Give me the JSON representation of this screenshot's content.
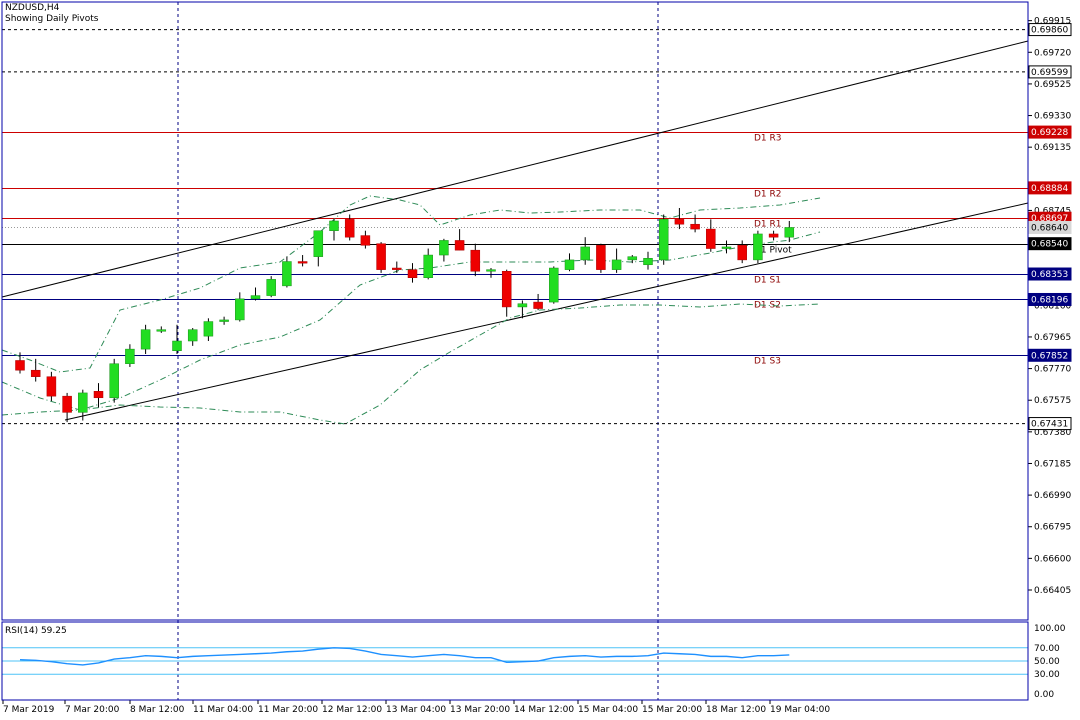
{
  "header": {
    "symbol": "NZDUSD,H4",
    "subtitle": "Showing Daily Pivots"
  },
  "rsi": {
    "label": "RSI(14) 59.25",
    "value": 59.25,
    "levels": [
      "100.00",
      "70.00",
      "50.00",
      "30.00",
      "0.00"
    ]
  },
  "colors": {
    "bull": "#22dd22",
    "bear": "#ee0000",
    "pivot_red": "#cc0000",
    "pivot_blue": "#000080",
    "rsi_line": "#1e90ff",
    "rsi_levels": "#4fc3f7",
    "frame": "#0000aa"
  },
  "chart_data": {
    "type": "candlestick",
    "price_axis_ticks": [
      "0.69915",
      "0.69720",
      "0.69525",
      "0.69330",
      "0.69135",
      "0.68745",
      "0.68550",
      "0.68160",
      "0.67965",
      "0.67770",
      "0.67575",
      "0.67380",
      "0.67185",
      "0.66990",
      "0.66795",
      "0.66600",
      "0.66405"
    ],
    "price_range": [
      0.6622,
      0.7003
    ],
    "time_labels": [
      "7 Mar 2019",
      "7 Mar 20:00",
      "8 Mar 12:00",
      "11 Mar 04:00",
      "11 Mar 20:00",
      "12 Mar 12:00",
      "13 Mar 04:00",
      "13 Mar 20:00",
      "14 Mar 12:00",
      "15 Mar 04:00",
      "15 Mar 20:00",
      "18 Mar 12:00",
      "19 Mar 04:00"
    ],
    "pivots": [
      {
        "name": "D1 R3",
        "value": 0.69228,
        "tag": "0.69228"
      },
      {
        "name": "D1 R2",
        "value": 0.68884,
        "tag": "0.68884"
      },
      {
        "name": "D1 R1",
        "value": 0.68697,
        "tag": "0.68697"
      },
      {
        "name": "D1 Pivot",
        "value": 0.6854,
        "tag": "0.68540"
      },
      {
        "name": "D1 S1",
        "value": 0.68353,
        "tag": "0.68353"
      },
      {
        "name": "D1 S2",
        "value": 0.68196,
        "tag": "0.68196"
      },
      {
        "name": "D1 S3",
        "value": 0.67852,
        "tag": "0.67852"
      }
    ],
    "horizontal_levels": [
      {
        "value": 0.6986,
        "tag": "0.69860"
      },
      {
        "value": 0.69599,
        "tag": "0.69599"
      },
      {
        "value": 0.67431,
        "tag": "0.67431"
      }
    ],
    "current_price": {
      "value": 0.6864,
      "tag": "0.68640"
    },
    "candles": [
      {
        "o": 0.6782,
        "h": 0.6787,
        "l": 0.6774,
        "c": 0.6776
      },
      {
        "o": 0.6776,
        "h": 0.6783,
        "l": 0.6769,
        "c": 0.6772
      },
      {
        "o": 0.6772,
        "h": 0.6775,
        "l": 0.6757,
        "c": 0.676
      },
      {
        "o": 0.676,
        "h": 0.6762,
        "l": 0.6744,
        "c": 0.675
      },
      {
        "o": 0.675,
        "h": 0.6764,
        "l": 0.6745,
        "c": 0.6762
      },
      {
        "o": 0.6763,
        "h": 0.6768,
        "l": 0.6753,
        "c": 0.6759
      },
      {
        "o": 0.6759,
        "h": 0.6783,
        "l": 0.6756,
        "c": 0.678
      },
      {
        "o": 0.678,
        "h": 0.6792,
        "l": 0.6778,
        "c": 0.6789
      },
      {
        "o": 0.6789,
        "h": 0.6804,
        "l": 0.6786,
        "c": 0.6801
      },
      {
        "o": 0.68,
        "h": 0.6803,
        "l": 0.6799,
        "c": 0.6801
      },
      {
        "o": 0.6788,
        "h": 0.6804,
        "l": 0.6786,
        "c": 0.6794
      },
      {
        "o": 0.6794,
        "h": 0.6802,
        "l": 0.6791,
        "c": 0.6801
      },
      {
        "o": 0.6797,
        "h": 0.6808,
        "l": 0.6794,
        "c": 0.6806
      },
      {
        "o": 0.6806,
        "h": 0.6809,
        "l": 0.6804,
        "c": 0.6807
      },
      {
        "o": 0.6807,
        "h": 0.6824,
        "l": 0.6806,
        "c": 0.682
      },
      {
        "o": 0.682,
        "h": 0.6827,
        "l": 0.6819,
        "c": 0.6822
      },
      {
        "o": 0.6822,
        "h": 0.6834,
        "l": 0.6821,
        "c": 0.6832
      },
      {
        "o": 0.6828,
        "h": 0.6846,
        "l": 0.6827,
        "c": 0.6843
      },
      {
        "o": 0.6843,
        "h": 0.6847,
        "l": 0.684,
        "c": 0.6842
      },
      {
        "o": 0.6846,
        "h": 0.6862,
        "l": 0.684,
        "c": 0.6862
      },
      {
        "o": 0.6862,
        "h": 0.6869,
        "l": 0.6856,
        "c": 0.6868
      },
      {
        "o": 0.6869,
        "h": 0.6872,
        "l": 0.6856,
        "c": 0.6858
      },
      {
        "o": 0.6859,
        "h": 0.6862,
        "l": 0.6851,
        "c": 0.6853
      },
      {
        "o": 0.6854,
        "h": 0.6855,
        "l": 0.6836,
        "c": 0.6838
      },
      {
        "o": 0.6839,
        "h": 0.6843,
        "l": 0.6836,
        "c": 0.6838
      },
      {
        "o": 0.6838,
        "h": 0.6842,
        "l": 0.683,
        "c": 0.6833
      },
      {
        "o": 0.6833,
        "h": 0.6851,
        "l": 0.6832,
        "c": 0.6847
      },
      {
        "o": 0.6847,
        "h": 0.6857,
        "l": 0.6843,
        "c": 0.6856
      },
      {
        "o": 0.6856,
        "h": 0.6863,
        "l": 0.685,
        "c": 0.685
      },
      {
        "o": 0.685,
        "h": 0.6854,
        "l": 0.6834,
        "c": 0.6837
      },
      {
        "o": 0.6837,
        "h": 0.6839,
        "l": 0.6833,
        "c": 0.6838
      },
      {
        "o": 0.6837,
        "h": 0.6838,
        "l": 0.6809,
        "c": 0.6815
      },
      {
        "o": 0.6815,
        "h": 0.6819,
        "l": 0.6808,
        "c": 0.6817
      },
      {
        "o": 0.6818,
        "h": 0.6823,
        "l": 0.6813,
        "c": 0.6814
      },
      {
        "o": 0.6818,
        "h": 0.684,
        "l": 0.6817,
        "c": 0.6839
      },
      {
        "o": 0.6838,
        "h": 0.6848,
        "l": 0.6837,
        "c": 0.6844
      },
      {
        "o": 0.6844,
        "h": 0.6858,
        "l": 0.6841,
        "c": 0.6852
      },
      {
        "o": 0.6853,
        "h": 0.6854,
        "l": 0.6836,
        "c": 0.6838
      },
      {
        "o": 0.6838,
        "h": 0.6851,
        "l": 0.6836,
        "c": 0.6844
      },
      {
        "o": 0.6844,
        "h": 0.6847,
        "l": 0.6842,
        "c": 0.6846
      },
      {
        "o": 0.6841,
        "h": 0.6849,
        "l": 0.6838,
        "c": 0.6845
      },
      {
        "o": 0.6844,
        "h": 0.6872,
        "l": 0.6841,
        "c": 0.6869
      },
      {
        "o": 0.6869,
        "h": 0.6876,
        "l": 0.6863,
        "c": 0.6866
      },
      {
        "o": 0.6866,
        "h": 0.6872,
        "l": 0.6861,
        "c": 0.6863
      },
      {
        "o": 0.6863,
        "h": 0.6869,
        "l": 0.6849,
        "c": 0.6851
      },
      {
        "o": 0.6851,
        "h": 0.6856,
        "l": 0.6848,
        "c": 0.6852
      },
      {
        "o": 0.6853,
        "h": 0.6856,
        "l": 0.6842,
        "c": 0.6844
      },
      {
        "o": 0.6844,
        "h": 0.6862,
        "l": 0.6842,
        "c": 0.686
      },
      {
        "o": 0.686,
        "h": 0.6862,
        "l": 0.6856,
        "c": 0.6858
      },
      {
        "o": 0.6858,
        "h": 0.6868,
        "l": 0.6855,
        "c": 0.6864
      }
    ],
    "rsi_values": [
      52,
      51,
      49,
      46,
      44,
      47,
      53,
      55,
      58,
      57,
      55,
      57,
      58,
      59,
      60,
      61,
      62,
      64,
      65,
      68,
      70,
      69,
      65,
      60,
      58,
      56,
      58,
      60,
      58,
      55,
      55,
      48,
      49,
      50,
      55,
      57,
      58,
      56,
      57,
      57,
      58,
      62,
      61,
      60,
      57,
      57,
      55,
      58,
      58,
      59.25
    ]
  }
}
